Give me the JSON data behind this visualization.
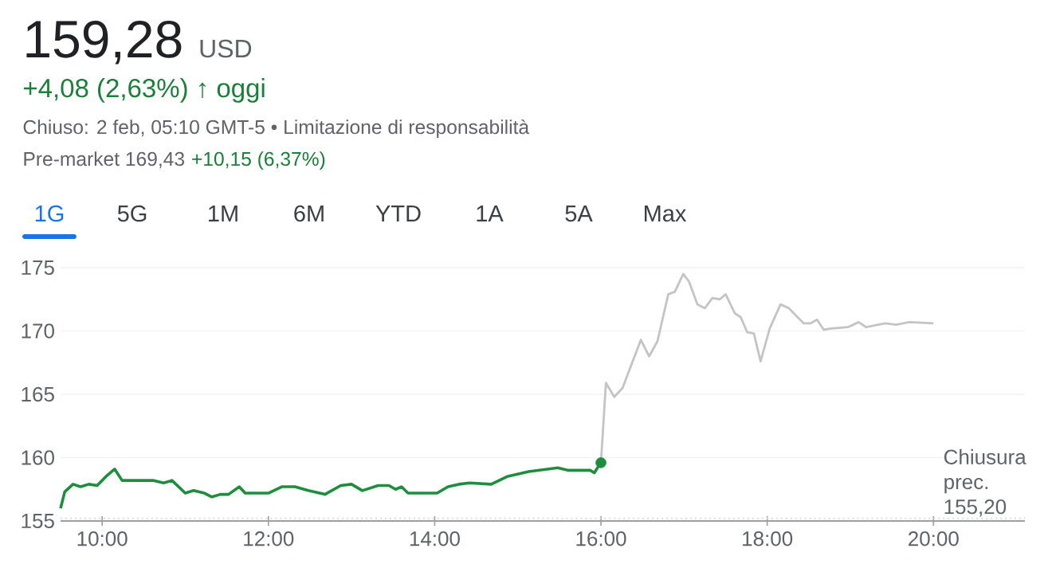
{
  "chart_data": {
    "type": "line",
    "title": "159,28",
    "subtitle": "USD",
    "annotations": [
      "+4,08 (2,63%) ↑ oggi",
      "Chiuso: 2 feb, 05:10 GMT-5 • Limitazione di responsabilità",
      "Pre-market 169,43",
      "+10,15 (6,37%)",
      "1G",
      "5G",
      "1M",
      "6M",
      "YTD",
      "1A",
      "5A",
      "Max"
    ],
    "xlim": [
      9.5,
      21.1
    ],
    "xticks": [
      {
        "value": 10,
        "label": "10:00"
      },
      {
        "value": 12,
        "label": "12:00"
      },
      {
        "value": 14,
        "label": "14:00"
      },
      {
        "value": 16,
        "label": "16:00"
      },
      {
        "value": 18,
        "label": "18:00"
      },
      {
        "value": 20,
        "label": "20:00"
      }
    ],
    "ylim": [
      155,
      175
    ],
    "yticks": [
      155,
      160,
      165,
      170,
      175
    ],
    "grid": "y",
    "ref_lines": [
      {
        "axis": "y",
        "value": 155.2,
        "label": "Chiusura prec. 155,20",
        "color": "#dadce0",
        "line_style": "dotted"
      }
    ],
    "series": [
      {
        "color": "#1e8e3e",
        "x": [
          9.5,
          9.55,
          9.65,
          9.74,
          9.84,
          9.94,
          10.0,
          10.06,
          10.15,
          10.24,
          10.35,
          10.61,
          10.74,
          10.84,
          11.0,
          11.1,
          11.23,
          11.32,
          11.42,
          11.52,
          11.65,
          11.72,
          12.0,
          12.16,
          12.32,
          12.48,
          12.68,
          12.87,
          13.0,
          13.13,
          13.32,
          13.45,
          13.53,
          13.6,
          13.68,
          13.9,
          14.03,
          14.16,
          14.29,
          14.42,
          14.68,
          14.87,
          15.13,
          15.48,
          15.61,
          15.87,
          15.92,
          16.0
        ],
        "values": [
          156.0,
          157.3,
          157.9,
          157.7,
          157.9,
          157.8,
          158.2,
          158.6,
          159.1,
          158.2,
          158.2,
          158.2,
          158.0,
          158.2,
          157.2,
          157.4,
          157.2,
          156.9,
          157.1,
          157.1,
          157.7,
          157.2,
          157.2,
          157.7,
          157.7,
          157.4,
          157.1,
          157.8,
          157.9,
          157.4,
          157.8,
          157.8,
          157.5,
          157.7,
          157.2,
          157.2,
          157.2,
          157.7,
          157.9,
          158.0,
          157.9,
          158.5,
          158.9,
          159.2,
          159.0,
          159.0,
          158.8,
          159.6
        ]
      },
      {
        "color": "#c4c4c4",
        "x": [
          16.0,
          16.06,
          16.16,
          16.26,
          16.48,
          16.58,
          16.68,
          16.81,
          16.89,
          16.99,
          17.06,
          17.16,
          17.25,
          17.34,
          17.43,
          17.5,
          17.61,
          17.68,
          17.76,
          17.84,
          17.92,
          18.03,
          18.16,
          18.26,
          18.44,
          18.52,
          18.6,
          18.68,
          18.77,
          18.97,
          19.1,
          19.19,
          19.42,
          19.55,
          19.71,
          20.0
        ],
        "values": [
          159.6,
          165.9,
          164.8,
          165.5,
          169.3,
          168.0,
          169.2,
          172.9,
          173.1,
          174.5,
          173.9,
          172.1,
          171.8,
          172.6,
          172.5,
          172.9,
          171.4,
          171.1,
          169.9,
          169.8,
          167.6,
          170.2,
          172.1,
          171.8,
          170.6,
          170.6,
          170.9,
          170.1,
          170.2,
          170.3,
          170.7,
          170.3,
          170.6,
          170.5,
          170.7,
          170.6
        ]
      },
      {
        "type": "scatter",
        "color": "#1e8e3e",
        "x": [
          16.0
        ],
        "values": [
          159.6
        ]
      }
    ]
  }
}
